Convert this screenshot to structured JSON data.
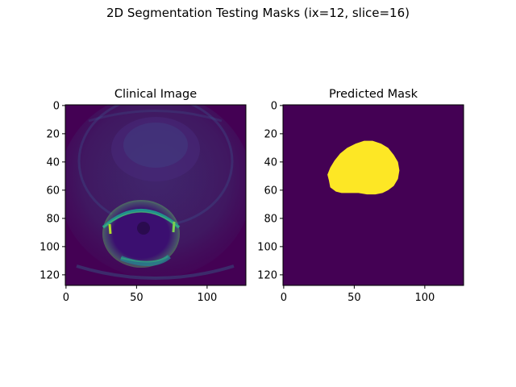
{
  "figure": {
    "suptitle": "2D Segmentation Testing Masks (ix=12, slice=16)"
  },
  "colors": {
    "viridis_dark": "#440154",
    "viridis_bright": "#fde725",
    "viridis_teal": "#21918c",
    "viridis_green": "#5ec962",
    "axis": "#000000"
  },
  "chart_data": [
    {
      "type": "heatmap",
      "title": "Clinical Image",
      "image_size": [
        128,
        128
      ],
      "colormap": "viridis",
      "x_ticks": [
        0,
        50,
        100
      ],
      "y_ticks": [
        0,
        20,
        40,
        60,
        80,
        100,
        120
      ],
      "xlim": [
        -0.5,
        127.5
      ],
      "ylim": [
        127.5,
        -0.5
      ],
      "grid": false
    },
    {
      "type": "heatmap",
      "title": "Predicted Mask",
      "image_size": [
        128,
        128
      ],
      "colormap": "viridis",
      "mask_values": [
        0,
        1
      ],
      "mask_outline_points": [
        [
          31,
          49
        ],
        [
          33,
          44
        ],
        [
          36,
          39
        ],
        [
          40,
          34
        ],
        [
          45,
          30
        ],
        [
          51,
          27
        ],
        [
          57,
          25
        ],
        [
          63,
          25
        ],
        [
          69,
          27
        ],
        [
          74,
          30
        ],
        [
          78,
          35
        ],
        [
          81,
          40
        ],
        [
          82,
          46
        ],
        [
          81,
          52
        ],
        [
          78,
          57
        ],
        [
          74,
          60
        ],
        [
          70,
          62
        ],
        [
          65,
          63
        ],
        [
          59,
          63
        ],
        [
          53,
          62
        ],
        [
          47,
          62
        ],
        [
          41,
          62
        ],
        [
          37,
          61
        ],
        [
          33,
          58
        ],
        [
          32,
          53
        ]
      ],
      "x_ticks": [
        0,
        50,
        100
      ],
      "y_ticks": [
        0,
        20,
        40,
        60,
        80,
        100,
        120
      ],
      "xlim": [
        -0.5,
        127.5
      ],
      "ylim": [
        127.5,
        -0.5
      ],
      "grid": false
    }
  ]
}
